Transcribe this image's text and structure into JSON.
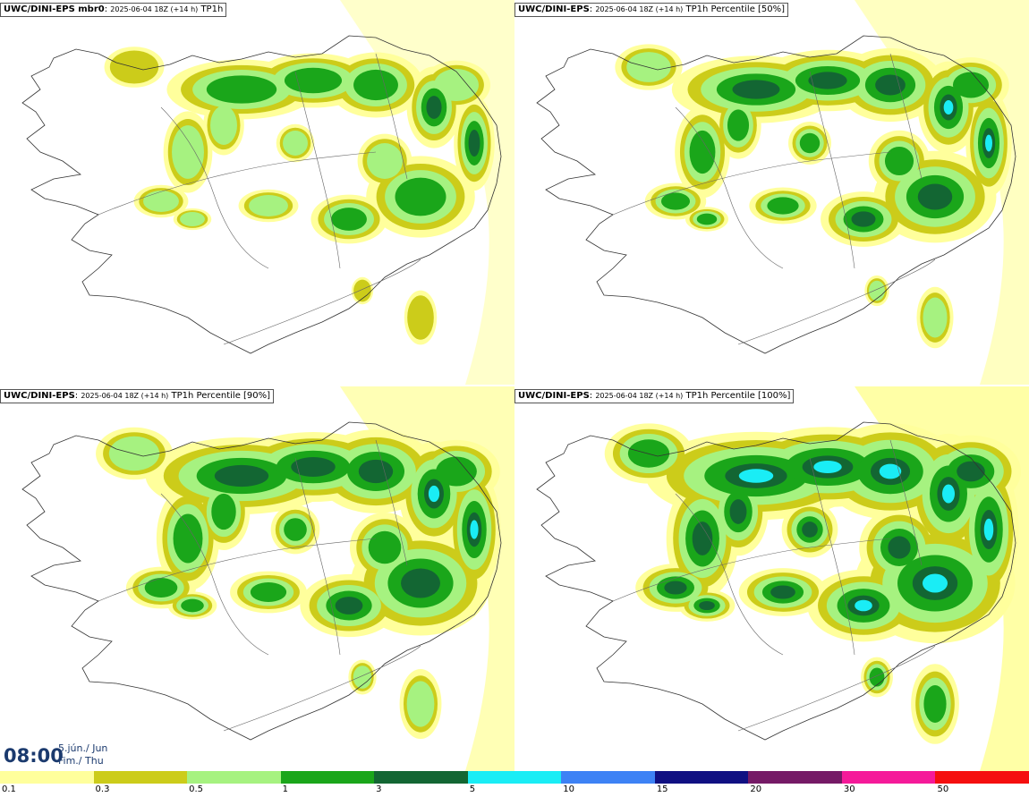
{
  "panels": [
    {
      "model": "UWC/DINI-EPS mbr0",
      "run": "2025-06-04 18Z (+14 h)",
      "field": "TP1h",
      "spread": 0.25
    },
    {
      "model": "UWC/DINI-EPS",
      "run": "2025-06-04 18Z (+14 h)",
      "field": "TP1h Percentile [50%]",
      "spread": 0.45
    },
    {
      "model": "UWC/DINI-EPS",
      "run": "2025-06-04 18Z (+14 h)",
      "field": "TP1h Percentile [90%]",
      "spread": 0.7
    },
    {
      "model": "UWC/DINI-EPS",
      "run": "2025-06-04 18Z (+14 h)",
      "field": "TP1h Percentile [100%]",
      "spread": 1.0
    }
  ],
  "valid_time": {
    "time": "08:00",
    "date_line1": "5.jún./ Jun",
    "date_line2": "Fim./ Thu"
  },
  "legend": {
    "levels": [
      "0.1",
      "0.3",
      "0.5",
      "1",
      "3",
      "5",
      "10",
      "15",
      "20",
      "30",
      "50"
    ],
    "colors": [
      "#ffff9c",
      "#cccc1a",
      "#a6f280",
      "#1aa61a",
      "#136633",
      "#1aedf5",
      "#3d82f5",
      "#101082",
      "#751a66",
      "#f51a99",
      "#f50f0f"
    ]
  }
}
